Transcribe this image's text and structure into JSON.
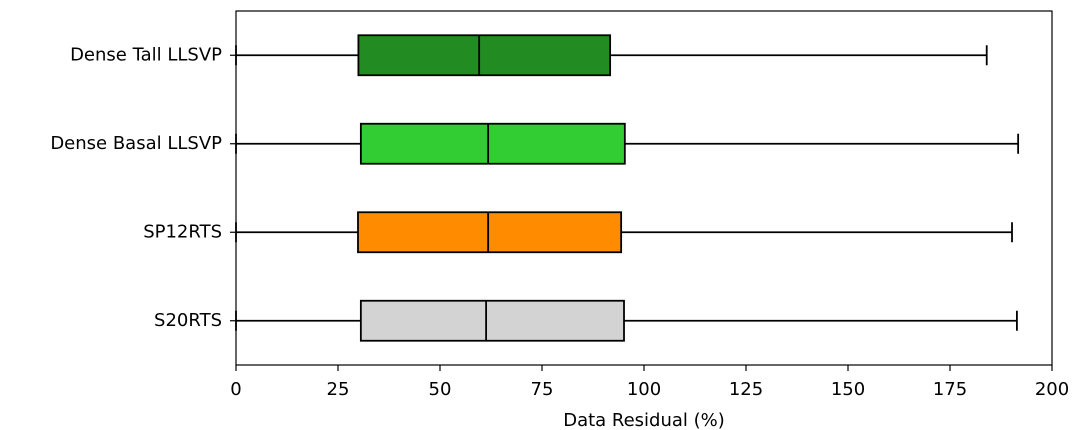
{
  "chart_data": {
    "type": "boxplot",
    "orientation": "horizontal",
    "xlabel": "Data Residual (%)",
    "categories": [
      "Dense Tall LLSVP",
      "Dense Basal LLSVP",
      "SP12RTS",
      "S20RTS"
    ],
    "boxes": [
      {
        "min": 0,
        "q1": 30,
        "median": 59.6,
        "q3": 91.7,
        "max": 184,
        "color": "#228b22"
      },
      {
        "min": 0,
        "q1": 30.6,
        "median": 61.8,
        "q3": 95.3,
        "max": 191.7,
        "color": "#32cd32"
      },
      {
        "min": 0,
        "q1": 29.9,
        "median": 61.8,
        "q3": 94.4,
        "max": 190.2,
        "color": "#ff8c00"
      },
      {
        "min": 0,
        "q1": 30.6,
        "median": 61.3,
        "q3": 95.1,
        "max": 191.4,
        "color": "#d3d3d3"
      }
    ],
    "xlim": [
      0,
      200
    ],
    "xticks": [
      0,
      25,
      50,
      75,
      100,
      125,
      150,
      175,
      200
    ]
  }
}
